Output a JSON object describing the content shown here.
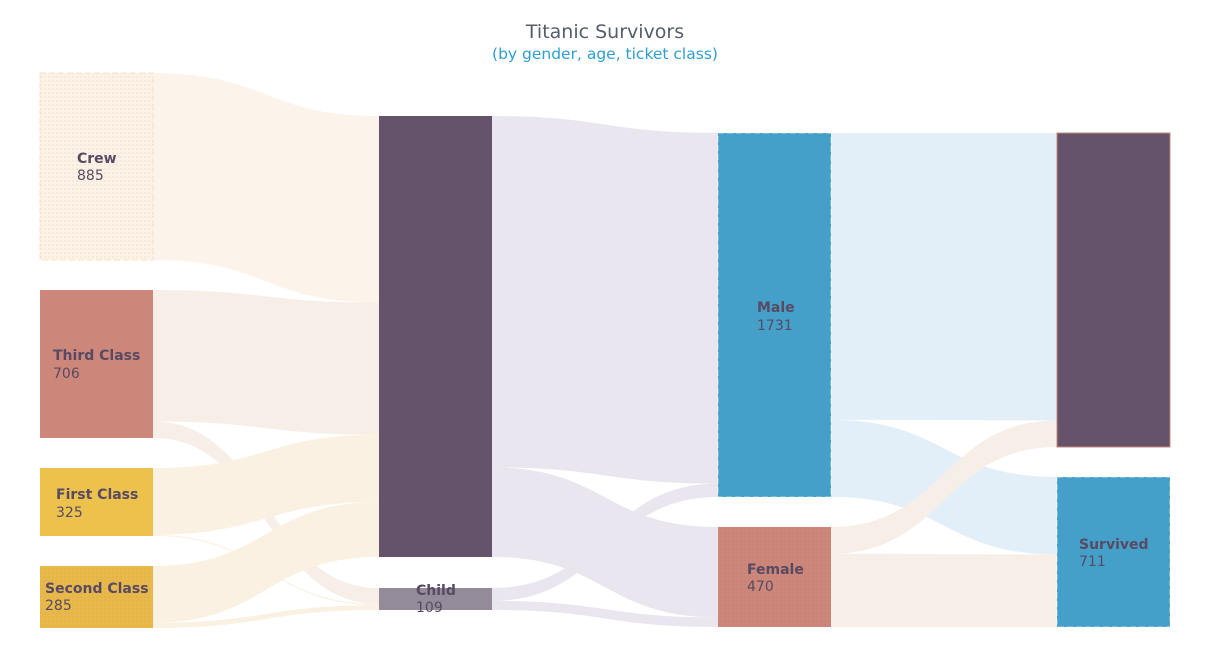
{
  "colors": {
    "purple": "#64536a",
    "blue": "#449fc9",
    "salmon": "#cc877a",
    "yellow": "#ecc24d",
    "gold": "#e8b94a",
    "gray": "#958c9b",
    "linkPurple": "#e8e5ee",
    "linkBlue": "#e1eef8",
    "linkPeach": "#f7eee6",
    "linkCream": "#fbf0e2",
    "labelText": "#574a62"
  },
  "chart_data": {
    "type": "sankey",
    "title": "Titanic Survivors",
    "subtitle": "(by gender, age, ticket class)",
    "nodes": [
      {
        "id": "crew",
        "name": "Crew",
        "value": 885,
        "value_label": "885",
        "column": 0
      },
      {
        "id": "third",
        "name": "Third Class",
        "value": 706,
        "value_label": "706",
        "column": 0
      },
      {
        "id": "first",
        "name": "First Class",
        "value": 325,
        "value_label": "325",
        "column": 0
      },
      {
        "id": "second",
        "name": "Second Class",
        "value": 285,
        "value_label": "285",
        "column": 0
      },
      {
        "id": "adult",
        "name": "",
        "value": 2092,
        "value_label": "",
        "column": 1
      },
      {
        "id": "child",
        "name": "Child",
        "value": 109,
        "value_label": "109",
        "column": 1
      },
      {
        "id": "male",
        "name": "Male",
        "value": 1731,
        "value_label": "1731",
        "column": 2
      },
      {
        "id": "female",
        "name": "Female",
        "value": 470,
        "value_label": "470",
        "column": 2
      },
      {
        "id": "died",
        "name": "",
        "value": 1490,
        "value_label": "",
        "column": 3
      },
      {
        "id": "survived",
        "name": "Survived",
        "value": 711,
        "value_label": "711",
        "column": 3
      }
    ],
    "links": [
      {
        "source": "crew",
        "target": "adult",
        "value": 885
      },
      {
        "source": "third",
        "target": "adult",
        "value": 627
      },
      {
        "source": "third",
        "target": "child",
        "value": 79
      },
      {
        "source": "first",
        "target": "adult",
        "value": 319
      },
      {
        "source": "first",
        "target": "child",
        "value": 6
      },
      {
        "source": "second",
        "target": "adult",
        "value": 261
      },
      {
        "source": "second",
        "target": "child",
        "value": 24
      },
      {
        "source": "adult",
        "target": "male",
        "value": 1667
      },
      {
        "source": "adult",
        "target": "female",
        "value": 425
      },
      {
        "source": "child",
        "target": "male",
        "value": 64
      },
      {
        "source": "child",
        "target": "female",
        "value": 45
      },
      {
        "source": "male",
        "target": "died",
        "value": 1364
      },
      {
        "source": "male",
        "target": "survived",
        "value": 367
      },
      {
        "source": "female",
        "target": "died",
        "value": 126
      },
      {
        "source": "female",
        "target": "survived",
        "value": 344
      }
    ]
  }
}
